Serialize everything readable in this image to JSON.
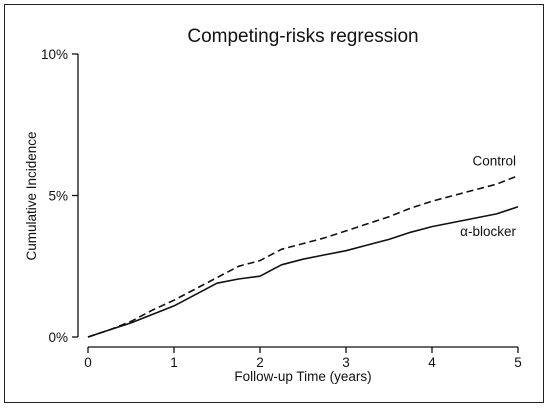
{
  "chart_data": {
    "type": "line",
    "title": "Competing-risks regression",
    "xlabel": "Follow-up Time (years)",
    "ylabel": "Cumulative Incidence",
    "xlim": [
      0,
      5
    ],
    "ylim": [
      0,
      10
    ],
    "x_ticks": [
      0,
      1,
      2,
      3,
      4,
      5
    ],
    "x_tick_labels": [
      "0",
      "1",
      "2",
      "3",
      "4",
      "5"
    ],
    "y_ticks": [
      0,
      5,
      10
    ],
    "y_tick_labels": [
      "0%",
      "5%",
      "10%"
    ],
    "grid": false,
    "legend": "none (inline labels)",
    "series": [
      {
        "name": "Control",
        "line_style": "dashed",
        "color": "#111111",
        "x": [
          0,
          0.25,
          0.5,
          0.75,
          1.0,
          1.25,
          1.5,
          1.75,
          2.0,
          2.25,
          2.5,
          2.75,
          3.0,
          3.25,
          3.5,
          3.75,
          4.0,
          4.25,
          4.5,
          4.75,
          5.0
        ],
        "y": [
          0,
          0.25,
          0.55,
          0.95,
          1.3,
          1.7,
          2.1,
          2.5,
          2.7,
          3.1,
          3.3,
          3.5,
          3.75,
          4.0,
          4.25,
          4.55,
          4.8,
          5.0,
          5.2,
          5.4,
          5.7
        ]
      },
      {
        "name": "α-blocker",
        "line_style": "solid",
        "color": "#111111",
        "x": [
          0,
          0.25,
          0.5,
          0.75,
          1.0,
          1.25,
          1.5,
          1.75,
          2.0,
          2.25,
          2.5,
          2.75,
          3.0,
          3.25,
          3.5,
          3.75,
          4.0,
          4.25,
          4.5,
          4.75,
          5.0
        ],
        "y": [
          0,
          0.25,
          0.5,
          0.8,
          1.1,
          1.5,
          1.9,
          2.05,
          2.15,
          2.55,
          2.75,
          2.9,
          3.05,
          3.25,
          3.45,
          3.7,
          3.9,
          4.05,
          4.2,
          4.35,
          4.6
        ]
      }
    ]
  }
}
